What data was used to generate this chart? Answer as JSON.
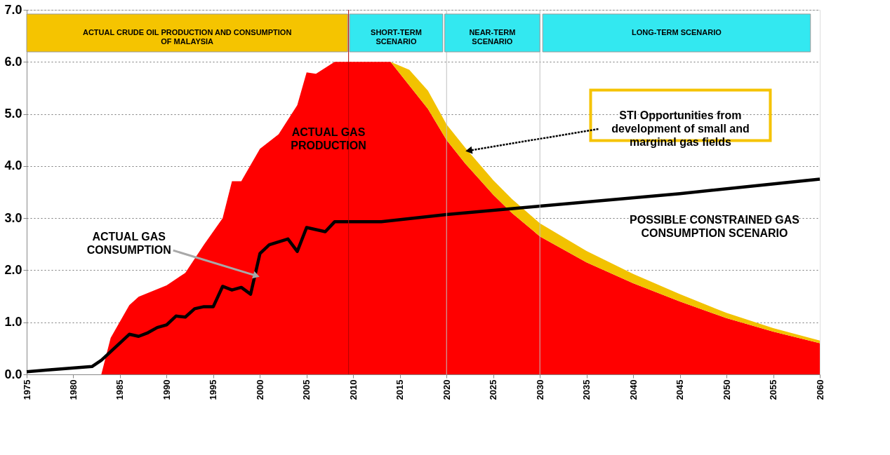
{
  "chart_data": {
    "type": "area",
    "stacked": true,
    "xlim": [
      1975,
      2060
    ],
    "xticks": [
      1975,
      1980,
      1985,
      1990,
      1995,
      2000,
      2005,
      2010,
      2015,
      2020,
      2025,
      2030,
      2035,
      2040,
      2045,
      2050,
      2055,
      2060
    ],
    "ylim": [
      0,
      7
    ],
    "yticks": [
      {
        "value": 0,
        "label": "0.0"
      },
      {
        "value": 1,
        "label": "1.0"
      },
      {
        "value": 2,
        "label": "2.0"
      },
      {
        "value": 3,
        "label": "3.0"
      },
      {
        "value": 4,
        "label": "4.0"
      },
      {
        "value": 5,
        "label": "5.0"
      },
      {
        "value": 6,
        "label": "6.0"
      },
      {
        "value": 7,
        "label": "7.0"
      }
    ],
    "grid": "y",
    "line_style": "solid",
    "x": [
      1983,
      1984,
      1986,
      1987,
      1990,
      1992,
      1994,
      1996,
      1997,
      1998,
      2000,
      2002,
      2004,
      2005,
      2006,
      2008,
      2014,
      2016,
      2018,
      2020,
      2022,
      2025,
      2027,
      2030,
      2035,
      2040,
      2045,
      2050,
      2055,
      2060
    ],
    "series": [
      {
        "color": "#ff0000",
        "values": [
          0,
          0.7,
          1.33,
          1.49,
          1.71,
          1.95,
          2.49,
          3.0,
          3.71,
          3.71,
          4.33,
          4.61,
          5.17,
          5.8,
          5.77,
          6.0,
          6.0,
          5.55,
          5.1,
          4.5,
          4.05,
          3.45,
          3.1,
          2.65,
          2.15,
          1.75,
          1.4,
          1.08,
          0.82,
          0.6
        ]
      },
      {
        "color": "#f2c200",
        "values": [
          null,
          null,
          null,
          null,
          null,
          null,
          null,
          null,
          null,
          null,
          null,
          null,
          null,
          null,
          null,
          null,
          0,
          0.3,
          0.35,
          0.3,
          0.3,
          0.28,
          0.27,
          0.25,
          0.22,
          0.18,
          0.14,
          0.1,
          0.07,
          0.05
        ]
      },
      {
        "type": "line",
        "color": "#000000",
        "x": [
          1975,
          1977,
          1982,
          1983,
          1986,
          1987,
          1988,
          1989,
          1990,
          1991,
          1992,
          1993,
          1994,
          1995,
          1996,
          1997,
          1998,
          1999,
          2000,
          2001,
          2003,
          2004,
          2005,
          2007,
          2008,
          2013,
          2020,
          2030,
          2045,
          2060
        ],
        "values": [
          0.05,
          0.08,
          0.15,
          0.27,
          0.77,
          0.73,
          0.8,
          0.9,
          0.95,
          1.12,
          1.1,
          1.26,
          1.3,
          1.3,
          1.69,
          1.62,
          1.67,
          1.54,
          2.32,
          2.49,
          2.6,
          2.36,
          2.82,
          2.74,
          2.93,
          2.93,
          3.07,
          3.23,
          3.47,
          3.75
        ]
      }
    ],
    "bands": [
      {
        "axis": "x",
        "from": 1975,
        "to": 2009.4,
        "label": "ACTUAL CRUDE OIL PRODUCTION AND CONSUMPTION OF MALAYSIA",
        "color": "#f5c400"
      },
      {
        "axis": "x",
        "from": 2009.6,
        "to": 2019.6,
        "label": "SHORT-TERM SCENARIO",
        "color": "#33e8f0"
      },
      {
        "axis": "x",
        "from": 2019.8,
        "to": 2030,
        "label": "NEAR-TERM SCENARIO",
        "color": "#33e8f0"
      },
      {
        "axis": "x",
        "from": 2030.3,
        "to": 2059,
        "label": "LONG-TERM SCENARIO",
        "color": "#33e8f0"
      }
    ],
    "ref_lines": [
      {
        "axis": "x",
        "value": 2009.5,
        "color": "#b00000"
      },
      {
        "axis": "x",
        "value": 2020,
        "color": "#c0c0c0"
      },
      {
        "axis": "x",
        "value": 2030,
        "color": "#c0c0c0"
      }
    ],
    "annotations": [
      "ACTUAL GAS PRODUCTION",
      {
        "text": "ACTUAL GAS CONSUMPTION",
        "x": 1999.5,
        "y": 1.9
      },
      {
        "text": "STI Opportunities from development of small and marginal gas fields",
        "x": 2022.5,
        "y": 4.3
      },
      "POSSIBLE CONSTRAINED GAS CONSUMPTION SCENARIO"
    ]
  }
}
